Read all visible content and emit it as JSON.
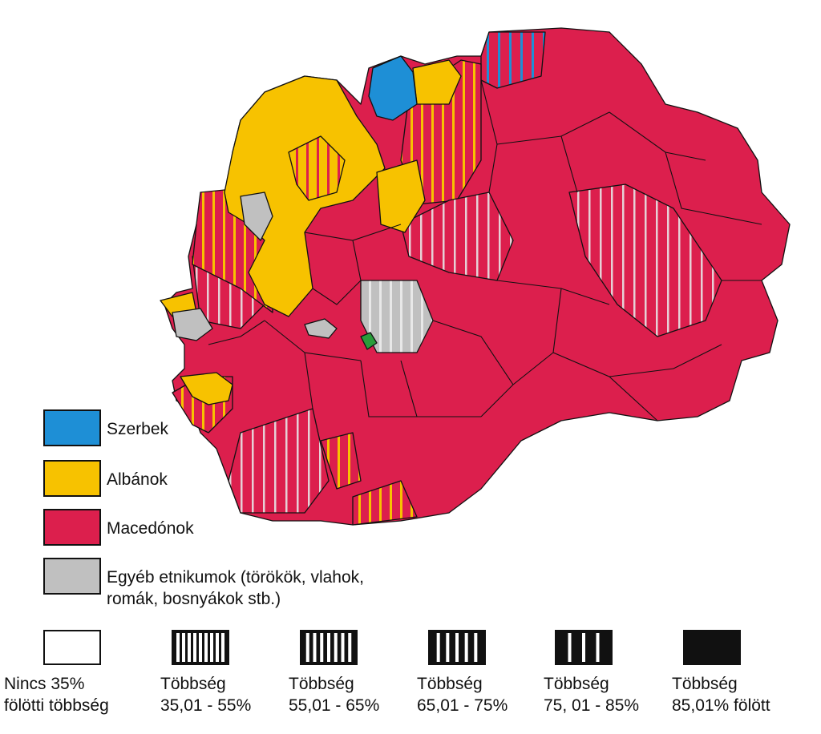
{
  "legend": {
    "colors": [
      {
        "label": [
          "Szerbek"
        ],
        "color": "#1e8fd6"
      },
      {
        "label": [
          "Albánok"
        ],
        "color": "#f7c200"
      },
      {
        "label": [
          "Macedónok"
        ],
        "color": "#dc1f4d"
      },
      {
        "label": [
          "Egyéb etnikumok (törökök, vlahok,",
          " romák, bosnyákok stb.)"
        ],
        "color": "#c0c0c0"
      }
    ],
    "patterns": [
      {
        "label": [
          "Nincs 35%",
          "fölötti többség"
        ]
      },
      {
        "label": [
          "Többség",
          "35,01 - 55%"
        ]
      },
      {
        "label": [
          "Többség",
          "55,01 - 65%"
        ]
      },
      {
        "label": [
          "Többség",
          "65,01 - 75%"
        ]
      },
      {
        "label": [
          "Többség",
          "75, 01 - 85%"
        ]
      },
      {
        "label": [
          "Többség",
          "85,01% fölött"
        ]
      }
    ]
  }
}
